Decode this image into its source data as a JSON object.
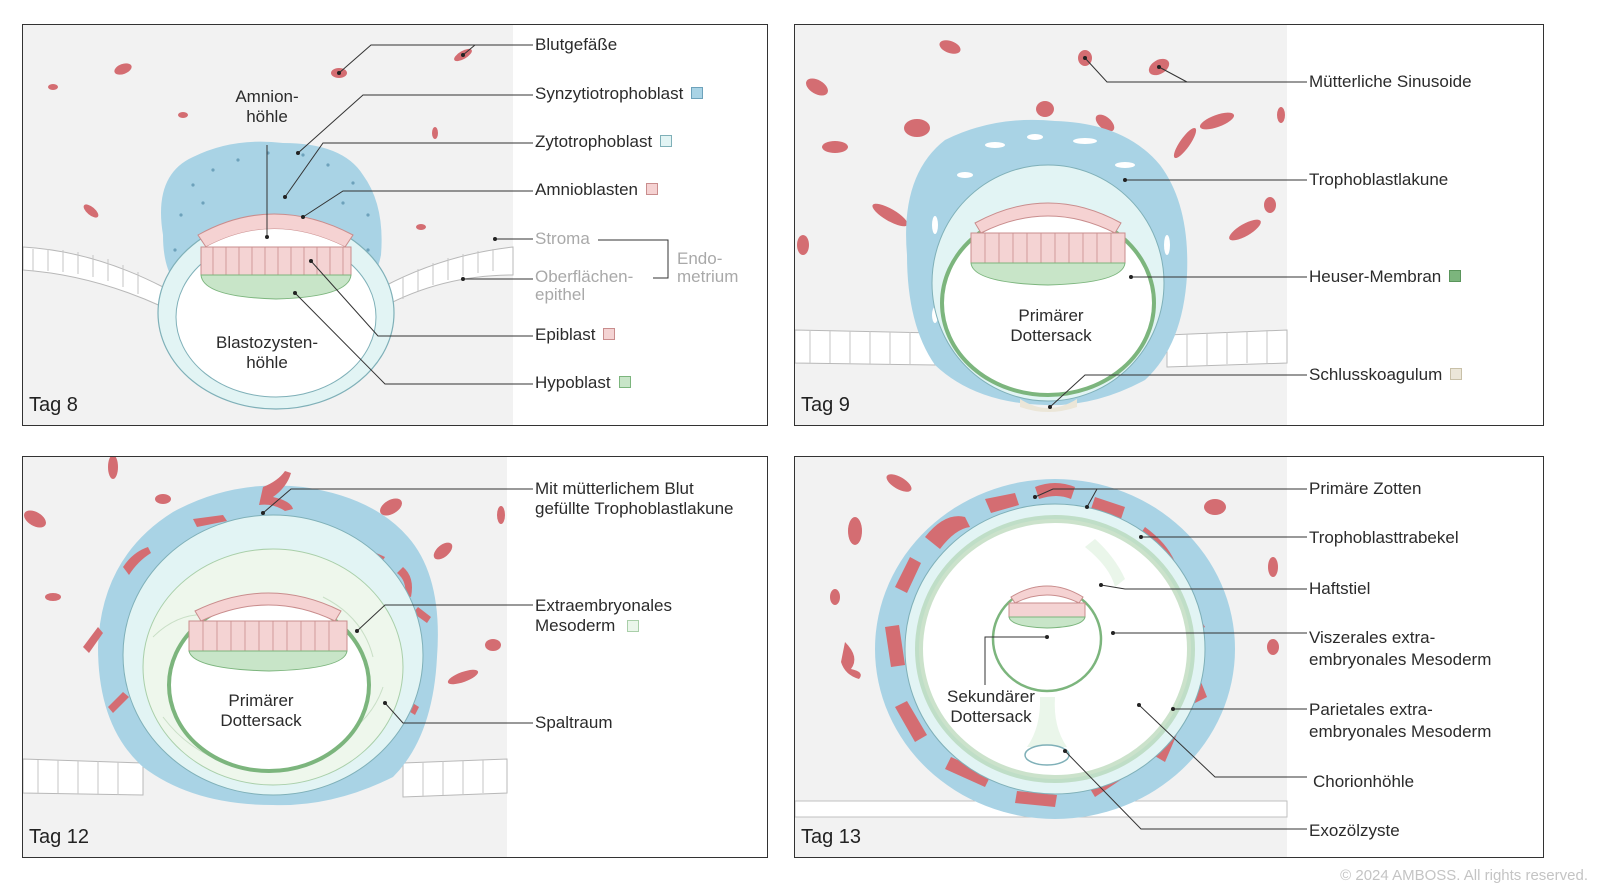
{
  "colors": {
    "syncytio": "#a9d3e5",
    "cyto": "#e2f4f4",
    "amnio": "#f5d2d2",
    "epiblast": "#f4d3d3",
    "hypoblast": "#c8e5c8",
    "heuser": "#7cb57d",
    "coagulum": "#ebe6d8",
    "mesoderm": "#eaf6ea",
    "blood": "#d46d72",
    "line": "#333333"
  },
  "panels": [
    {
      "day": "Tag 8",
      "labels": {
        "amnion": "Amnion-\nhöhle",
        "blasto": "Blastozysten-\nhöhle",
        "blood": "Blutgefäße",
        "syncytio": "Synzytiotrophoblast",
        "cyto": "Zytotrophoblast",
        "amnio": "Amnioblasten",
        "stroma": "Stroma",
        "surface": "Oberflächen-\nepithel",
        "endo": "Endo-\nmetrium",
        "epiblast": "Epiblast",
        "hypoblast": "Hypoblast"
      }
    },
    {
      "day": "Tag 9",
      "labels": {
        "yolk": "Primärer\nDottersack",
        "sinus": "Mütterliche Sinusoide",
        "lacuna": "Trophoblastlakune",
        "heuser": "Heuser-Membran",
        "coagulum": "Schlusskoagulum"
      }
    },
    {
      "day": "Tag 12",
      "labels": {
        "yolk": "Primärer\nDottersack",
        "lacuna": "Mit mütterlichem Blut\ngefüllte Trophoblastlakune",
        "mesoderm": "Extraembryonales\nMesoderm",
        "gap": "Spaltraum"
      }
    },
    {
      "day": "Tag 13",
      "labels": {
        "yolk": "Sekundärer\nDottersack",
        "villi": "Primäre Zotten",
        "trabecula": "Trophoblasttrabekel",
        "stalk": "Haftstiel",
        "visceral": "Viszerales extra-\nembryonales Mesoderm",
        "parietal": "Parietales extra-\nembryonales Mesoderm",
        "chorion": "Chorionhöhle",
        "exocoelom": "Exozölzyste"
      }
    }
  ],
  "copyright": "© 2024 AMBOSS. All rights reserved."
}
